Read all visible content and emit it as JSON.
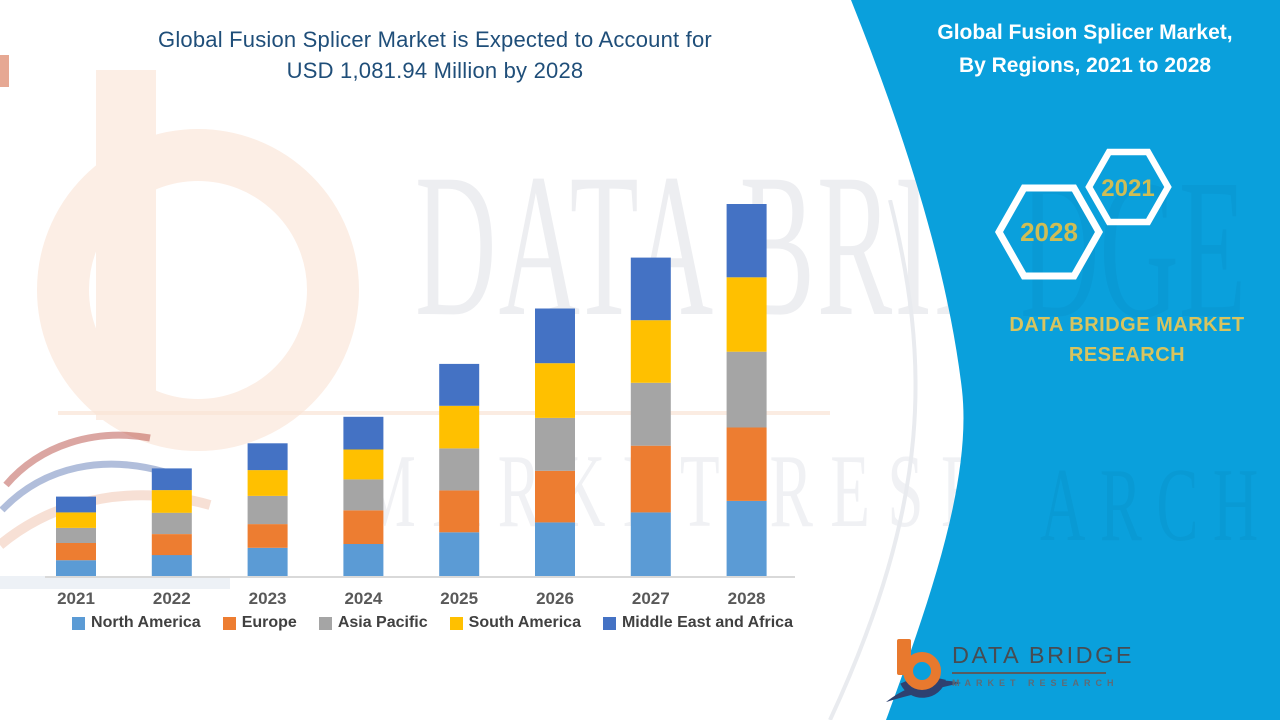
{
  "header": {
    "title_line1": "Global Fusion Splicer Market is Expected to Account for",
    "title_line2": "USD 1,081.94 Million by 2028"
  },
  "side_panel": {
    "title_line1": "Global Fusion Splicer Market,",
    "title_line2": "By Regions, 2021 to 2028",
    "hexagons": [
      {
        "label": "2028"
      },
      {
        "label": "2021"
      }
    ],
    "brand_line1": "DATA BRIDGE MARKET",
    "brand_line2": "RESEARCH",
    "panel_color": "#0AA0DC",
    "accent_gold": "#CFBD55"
  },
  "logo": {
    "name": "DATA BRIDGE",
    "subtext": "MARKET RESEARCH"
  },
  "watermark": {
    "large_text": "DATA BRIDGE",
    "row2_text": "MARKET RESEARCH",
    "panel_ghost_top": "DGE",
    "panel_ghost_bottom": "ARCH"
  },
  "chart_data": {
    "type": "bar",
    "stacked": true,
    "title": "Global Fusion Splicer Market is Expected to Account for USD 1,081.94 Million by 2028",
    "unit": "USD Million",
    "categories": [
      "2021",
      "2022",
      "2023",
      "2024",
      "2025",
      "2026",
      "2027",
      "2028"
    ],
    "series": [
      {
        "name": "North America",
        "color": "#5B9BD5",
        "values": [
          46,
          61,
          82,
          93,
          127,
          156,
          185,
          218.4
        ]
      },
      {
        "name": "Europe",
        "color": "#ED7D31",
        "values": [
          50,
          61,
          69,
          98,
          122,
          150,
          194,
          213.5
        ]
      },
      {
        "name": "Asia Pacific",
        "color": "#A5A5A5",
        "values": [
          44,
          62,
          82,
          90,
          122,
          154,
          183,
          220.4
        ]
      },
      {
        "name": "South America",
        "color": "#FFC000",
        "values": [
          45,
          66,
          75,
          87,
          124,
          159,
          182,
          216.4
        ]
      },
      {
        "name": "Middle East and Africa",
        "color": "#4472C4",
        "values": [
          46,
          63,
          78,
          95,
          122,
          159,
          182,
          213.24
        ]
      }
    ],
    "totals": [
      231,
      313,
      386,
      463,
      617,
      778,
      926,
      1081.94
    ],
    "ylim": [
      0,
      1100
    ],
    "grid": false,
    "legend_position": "bottom",
    "axis_line_color": "#D9D9D9"
  }
}
